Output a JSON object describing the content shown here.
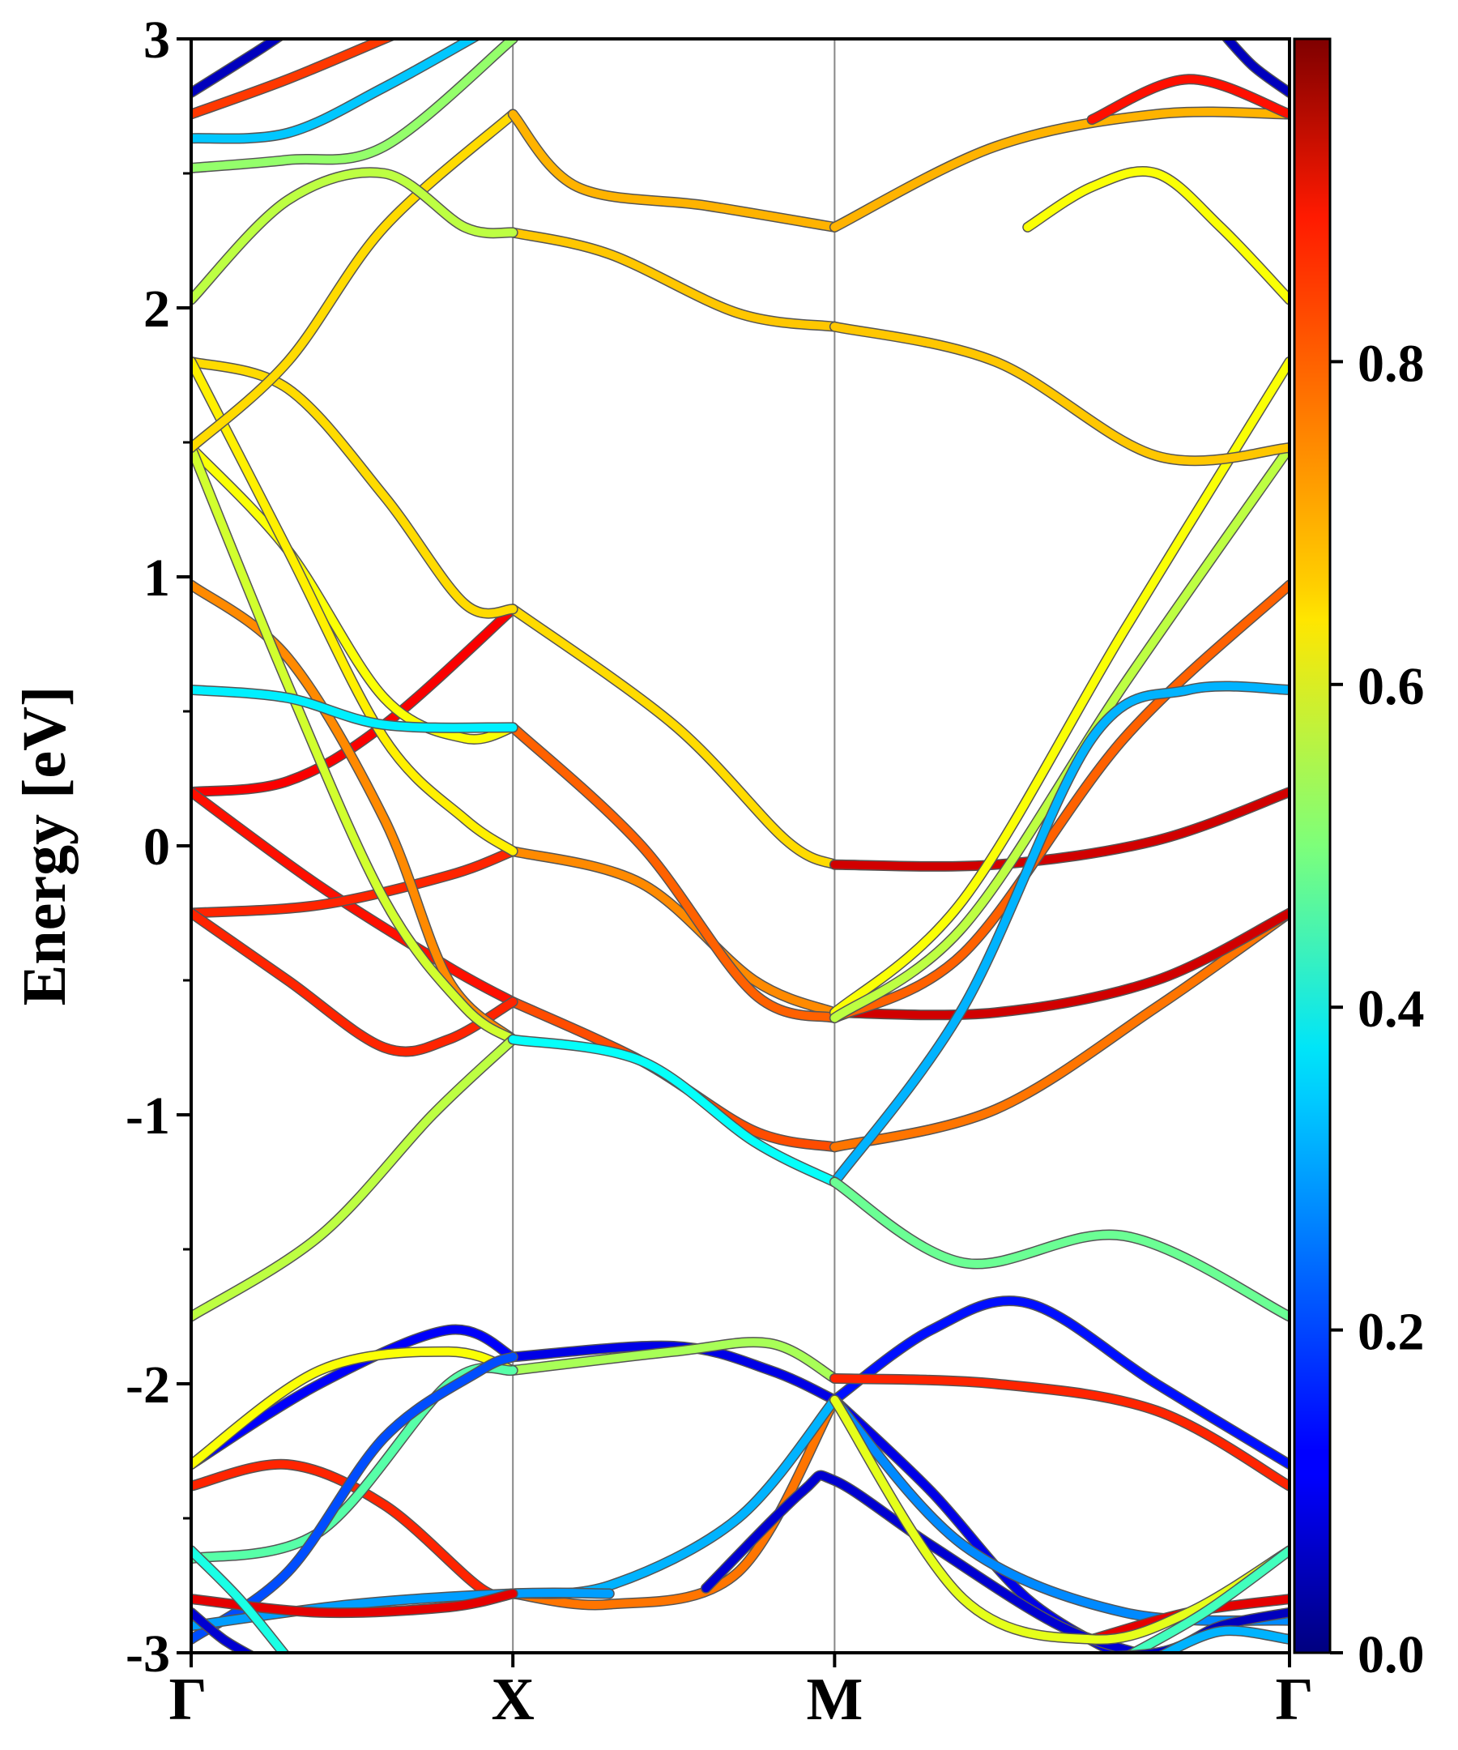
{
  "chart_data": {
    "type": "line",
    "ylabel": "Energy [eV]",
    "ylim": [
      -3,
      3
    ],
    "yticks": [
      {
        "value": 3,
        "label": "3"
      },
      {
        "value": 2,
        "label": "2"
      },
      {
        "value": 1,
        "label": "1"
      },
      {
        "value": 0,
        "label": "0"
      },
      {
        "value": -1,
        "label": "-1"
      },
      {
        "value": -2,
        "label": "-2"
      },
      {
        "value": -3,
        "label": "-3"
      }
    ],
    "kpath": [
      {
        "label": "Γ",
        "pos": 0
      },
      {
        "label": "X",
        "pos": 1
      },
      {
        "label": "M",
        "pos": 2
      },
      {
        "label": "Γ",
        "pos": 3.414
      }
    ],
    "colorbar": {
      "range": [
        0.0,
        1.0
      ],
      "ticks": [
        {
          "value": 0.0,
          "label": "0.0"
        },
        {
          "value": 0.2,
          "label": "0.2"
        },
        {
          "value": 0.4,
          "label": "0.4"
        },
        {
          "value": 0.6,
          "label": "0.6"
        },
        {
          "value": 0.8,
          "label": "0.8"
        }
      ],
      "colormap": "jet"
    },
    "series": [
      {
        "weight": 0.88,
        "points": [
          [
            0,
            0.2
          ],
          [
            0.3,
            0.24
          ],
          [
            0.6,
            0.45
          ],
          [
            1,
            0.88
          ]
        ]
      },
      {
        "weight": 0.66,
        "points": [
          [
            1,
            0.88
          ],
          [
            1.5,
            0.45
          ],
          [
            1.85,
            0.02
          ],
          [
            2,
            -0.07
          ]
        ]
      },
      {
        "weight": 0.92,
        "points": [
          [
            2,
            -0.07
          ],
          [
            2.5,
            -0.07
          ],
          [
            3,
            0.02
          ],
          [
            3.414,
            0.2
          ]
        ]
      },
      {
        "weight": 0.86,
        "points": [
          [
            0,
            0.2
          ],
          [
            0.4,
            -0.15
          ],
          [
            0.8,
            -0.45
          ],
          [
            1,
            -0.58
          ]
        ]
      },
      {
        "weight": 0.8,
        "points": [
          [
            1,
            -0.58
          ],
          [
            1.4,
            -0.8
          ],
          [
            1.75,
            -1.06
          ],
          [
            2,
            -1.12
          ]
        ]
      },
      {
        "weight": 0.76,
        "points": [
          [
            2,
            -1.12
          ],
          [
            2.5,
            -0.98
          ],
          [
            3,
            -0.6
          ],
          [
            3.414,
            -0.25
          ]
        ]
      },
      {
        "weight": 0.84,
        "points": [
          [
            0,
            -0.25
          ],
          [
            0.4,
            -0.22
          ],
          [
            0.8,
            -0.11
          ],
          [
            1,
            -0.02
          ]
        ]
      },
      {
        "weight": 0.74,
        "points": [
          [
            1,
            -0.02
          ],
          [
            1.4,
            -0.14
          ],
          [
            1.75,
            -0.5
          ],
          [
            2,
            -0.62
          ]
        ]
      },
      {
        "weight": 0.92,
        "points": [
          [
            2,
            -0.62
          ],
          [
            2.5,
            -0.62
          ],
          [
            3,
            -0.5
          ],
          [
            3.414,
            -0.25
          ]
        ]
      },
      {
        "weight": 0.84,
        "points": [
          [
            0,
            -0.25
          ],
          [
            0.3,
            -0.5
          ],
          [
            0.6,
            -0.75
          ],
          [
            0.8,
            -0.72
          ],
          [
            1,
            -0.58
          ]
        ]
      },
      {
        "weight": 0.78,
        "points": [
          [
            1,
            0.44
          ],
          [
            1.4,
            0.0
          ],
          [
            1.75,
            -0.55
          ],
          [
            2,
            -0.64
          ]
        ]
      },
      {
        "weight": 0.78,
        "points": [
          [
            2,
            -0.64
          ],
          [
            2.4,
            -0.4
          ],
          [
            2.9,
            0.4
          ],
          [
            3.414,
            0.97
          ]
        ]
      },
      {
        "weight": 0.74,
        "points": [
          [
            0,
            0.97
          ],
          [
            0.3,
            0.7
          ],
          [
            0.6,
            0.1
          ],
          [
            0.8,
            -0.5
          ],
          [
            1,
            -0.72
          ]
        ]
      },
      {
        "weight": 0.66,
        "points": [
          [
            0,
            1.8
          ],
          [
            0.3,
            1.7
          ],
          [
            0.6,
            1.3
          ],
          [
            0.85,
            0.9
          ],
          [
            1,
            0.88
          ]
        ]
      },
      {
        "weight": 0.62,
        "points": [
          [
            0,
            1.48
          ],
          [
            0.3,
            1.1
          ],
          [
            0.6,
            0.55
          ],
          [
            0.85,
            0.4
          ],
          [
            1,
            0.44
          ]
        ]
      },
      {
        "weight": 0.64,
        "points": [
          [
            0,
            1.8
          ],
          [
            0.3,
            1.1
          ],
          [
            0.6,
            0.4
          ],
          [
            0.85,
            0.1
          ],
          [
            1,
            -0.02
          ]
        ]
      },
      {
        "weight": 0.58,
        "points": [
          [
            0,
            1.48
          ],
          [
            0.3,
            0.6
          ],
          [
            0.6,
            -0.2
          ],
          [
            0.85,
            -0.6
          ],
          [
            1,
            -0.72
          ]
        ]
      },
      {
        "weight": 0.62,
        "points": [
          [
            2,
            -0.62
          ],
          [
            2.4,
            -0.2
          ],
          [
            2.9,
            0.8
          ],
          [
            3.414,
            1.8
          ]
        ]
      },
      {
        "weight": 0.56,
        "points": [
          [
            2,
            -0.64
          ],
          [
            2.4,
            -0.3
          ],
          [
            2.9,
            0.6
          ],
          [
            3.414,
            1.48
          ]
        ]
      },
      {
        "weight": 0.36,
        "points": [
          [
            0,
            0.58
          ],
          [
            0.3,
            0.55
          ],
          [
            0.6,
            0.45
          ],
          [
            1,
            0.44
          ]
        ]
      },
      {
        "weight": 0.3,
        "points": [
          [
            2,
            -1.25
          ],
          [
            2.4,
            -0.6
          ],
          [
            2.8,
            0.4
          ],
          [
            3.1,
            0.58
          ],
          [
            3.414,
            0.58
          ]
        ]
      },
      {
        "weight": 0.66,
        "points": [
          [
            0,
            1.48
          ],
          [
            0.3,
            1.8
          ],
          [
            0.6,
            2.3
          ],
          [
            1,
            2.72
          ]
        ]
      },
      {
        "weight": 0.7,
        "points": [
          [
            1,
            2.72
          ],
          [
            1.2,
            2.45
          ],
          [
            1.6,
            2.38
          ],
          [
            2,
            2.3
          ]
        ]
      },
      {
        "weight": 0.7,
        "points": [
          [
            2,
            2.3
          ],
          [
            2.5,
            2.6
          ],
          [
            3,
            2.72
          ],
          [
            3.414,
            2.72
          ]
        ]
      },
      {
        "weight": 0.68,
        "points": [
          [
            1,
            2.28
          ],
          [
            1.3,
            2.2
          ],
          [
            1.7,
            1.98
          ],
          [
            2,
            1.93
          ]
        ]
      },
      {
        "weight": 0.68,
        "points": [
          [
            2,
            1.93
          ],
          [
            2.5,
            1.8
          ],
          [
            3,
            1.45
          ],
          [
            3.414,
            1.48
          ]
        ]
      },
      {
        "weight": 0.56,
        "points": [
          [
            0,
            2.03
          ],
          [
            0.3,
            2.4
          ],
          [
            0.6,
            2.5
          ],
          [
            0.85,
            2.3
          ],
          [
            1,
            2.28
          ]
        ]
      },
      {
        "weight": 0.62,
        "points": [
          [
            2.6,
            2.3
          ],
          [
            2.8,
            2.45
          ],
          [
            3,
            2.5
          ],
          [
            3.2,
            2.3
          ],
          [
            3.414,
            2.03
          ]
        ]
      },
      {
        "weight": 0.52,
        "points": [
          [
            0,
            2.52
          ],
          [
            0.3,
            2.55
          ],
          [
            0.6,
            2.6
          ],
          [
            1,
            3.0
          ]
        ]
      },
      {
        "weight": 0.82,
        "points": [
          [
            0,
            2.72
          ],
          [
            0.3,
            2.85
          ],
          [
            0.6,
            3.0
          ],
          [
            0.7,
            3.05
          ]
        ]
      },
      {
        "weight": 0.86,
        "points": [
          [
            2.8,
            2.7
          ],
          [
            3.1,
            2.85
          ],
          [
            3.414,
            2.72
          ]
        ]
      },
      {
        "weight": 0.32,
        "points": [
          [
            0,
            2.63
          ],
          [
            0.3,
            2.65
          ],
          [
            0.6,
            2.82
          ],
          [
            0.9,
            3.02
          ]
        ]
      },
      {
        "weight": 0.06,
        "points": [
          [
            0,
            2.8
          ],
          [
            0.2,
            2.95
          ],
          [
            0.3,
            3.03
          ]
        ]
      },
      {
        "weight": 0.06,
        "points": [
          [
            3.2,
            3.03
          ],
          [
            3.3,
            2.9
          ],
          [
            3.414,
            2.8
          ]
        ]
      },
      {
        "weight": 0.56,
        "points": [
          [
            0,
            -1.75
          ],
          [
            0.4,
            -1.45
          ],
          [
            0.75,
            -1.0
          ],
          [
            1,
            -0.72
          ]
        ]
      },
      {
        "weight": 0.38,
        "points": [
          [
            1,
            -0.72
          ],
          [
            1.4,
            -0.8
          ],
          [
            1.75,
            -1.1
          ],
          [
            2,
            -1.25
          ]
        ]
      },
      {
        "weight": 0.48,
        "points": [
          [
            2,
            -1.25
          ],
          [
            2.4,
            -1.55
          ],
          [
            2.9,
            -1.45
          ],
          [
            3.414,
            -1.75
          ]
        ]
      },
      {
        "weight": 0.12,
        "points": [
          [
            0,
            -2.3
          ],
          [
            0.4,
            -2.0
          ],
          [
            0.8,
            -1.8
          ],
          [
            1,
            -1.9
          ]
        ]
      },
      {
        "weight": 0.1,
        "points": [
          [
            1,
            -1.9
          ],
          [
            1.5,
            -1.86
          ],
          [
            1.8,
            -1.95
          ],
          [
            2,
            -2.06
          ]
        ]
      },
      {
        "weight": 0.14,
        "points": [
          [
            2,
            -2.06
          ],
          [
            2.3,
            -1.8
          ],
          [
            2.6,
            -1.7
          ],
          [
            3,
            -2.0
          ],
          [
            3.414,
            -2.3
          ]
        ]
      },
      {
        "weight": 0.62,
        "points": [
          [
            0,
            -2.3
          ],
          [
            0.4,
            -1.95
          ],
          [
            0.8,
            -1.88
          ],
          [
            1,
            -1.95
          ]
        ]
      },
      {
        "weight": 0.54,
        "points": [
          [
            1,
            -1.95
          ],
          [
            1.5,
            -1.88
          ],
          [
            1.8,
            -1.85
          ],
          [
            2,
            -1.98
          ]
        ]
      },
      {
        "weight": 0.84,
        "points": [
          [
            2,
            -1.98
          ],
          [
            2.5,
            -2.0
          ],
          [
            3,
            -2.1
          ],
          [
            3.414,
            -2.38
          ]
        ]
      },
      {
        "weight": 0.84,
        "points": [
          [
            0,
            -2.38
          ],
          [
            0.3,
            -2.3
          ],
          [
            0.6,
            -2.45
          ],
          [
            0.9,
            -2.76
          ],
          [
            1,
            -2.78
          ]
        ]
      },
      {
        "weight": 0.76,
        "points": [
          [
            1,
            -2.78
          ],
          [
            1.3,
            -2.82
          ],
          [
            1.7,
            -2.7
          ],
          [
            2,
            -2.06
          ]
        ]
      },
      {
        "weight": 0.1,
        "points": [
          [
            2,
            -2.06
          ],
          [
            2.3,
            -2.4
          ],
          [
            2.6,
            -2.8
          ],
          [
            2.9,
            -3.02
          ]
        ]
      },
      {
        "weight": 0.46,
        "points": [
          [
            0,
            -2.65
          ],
          [
            0.4,
            -2.55
          ],
          [
            0.8,
            -2.0
          ],
          [
            1,
            -1.95
          ]
        ]
      },
      {
        "weight": 0.2,
        "points": [
          [
            0,
            -2.95
          ],
          [
            0.3,
            -2.7
          ],
          [
            0.6,
            -2.2
          ],
          [
            0.9,
            -1.95
          ],
          [
            1,
            -1.9
          ]
        ]
      },
      {
        "weight": 0.3,
        "points": [
          [
            1,
            -2.78
          ],
          [
            1.3,
            -2.75
          ],
          [
            1.7,
            -2.5
          ],
          [
            2,
            -2.06
          ]
        ]
      },
      {
        "weight": 0.26,
        "points": [
          [
            2,
            -2.06
          ],
          [
            2.4,
            -2.6
          ],
          [
            2.9,
            -2.85
          ],
          [
            3.414,
            -2.88
          ]
        ]
      },
      {
        "weight": 0.08,
        "points": [
          [
            1.6,
            -2.76
          ],
          [
            1.9,
            -2.4
          ],
          [
            2,
            -2.36
          ],
          [
            2.3,
            -2.6
          ],
          [
            2.7,
            -2.9
          ],
          [
            3,
            -3.02
          ]
        ]
      },
      {
        "weight": 0.28,
        "points": [
          [
            0,
            -2.9
          ],
          [
            0.5,
            -2.82
          ],
          [
            1,
            -2.78
          ],
          [
            1.3,
            -2.78
          ]
        ]
      },
      {
        "weight": 0.9,
        "points": [
          [
            0,
            -2.8
          ],
          [
            0.4,
            -2.85
          ],
          [
            0.8,
            -2.83
          ],
          [
            1,
            -2.78
          ]
        ]
      },
      {
        "weight": 0.9,
        "points": [
          [
            2.8,
            -2.95
          ],
          [
            3.1,
            -2.85
          ],
          [
            3.414,
            -2.8
          ]
        ]
      },
      {
        "weight": 0.6,
        "points": [
          [
            2,
            -2.06
          ],
          [
            2.4,
            -2.8
          ],
          [
            2.8,
            -2.95
          ],
          [
            3.1,
            -2.85
          ],
          [
            3.414,
            -2.62
          ]
        ]
      },
      {
        "weight": 0.44,
        "points": [
          [
            2.9,
            -3.02
          ],
          [
            3.15,
            -2.85
          ],
          [
            3.414,
            -2.62
          ]
        ]
      },
      {
        "weight": 0.06,
        "points": [
          [
            2.6,
            -3.02
          ],
          [
            3,
            -3.0
          ],
          [
            3.2,
            -2.9
          ],
          [
            3.414,
            -2.85
          ]
        ]
      },
      {
        "weight": 0.4,
        "points": [
          [
            0,
            -2.62
          ],
          [
            0.15,
            -2.8
          ],
          [
            0.3,
            -3.02
          ]
        ]
      },
      {
        "weight": 0.08,
        "points": [
          [
            0,
            -2.85
          ],
          [
            0.1,
            -2.95
          ],
          [
            0.2,
            -3.02
          ]
        ]
      },
      {
        "weight": 0.3,
        "points": [
          [
            3.0,
            -3.02
          ],
          [
            3.2,
            -2.92
          ],
          [
            3.414,
            -2.95
          ]
        ]
      }
    ]
  }
}
